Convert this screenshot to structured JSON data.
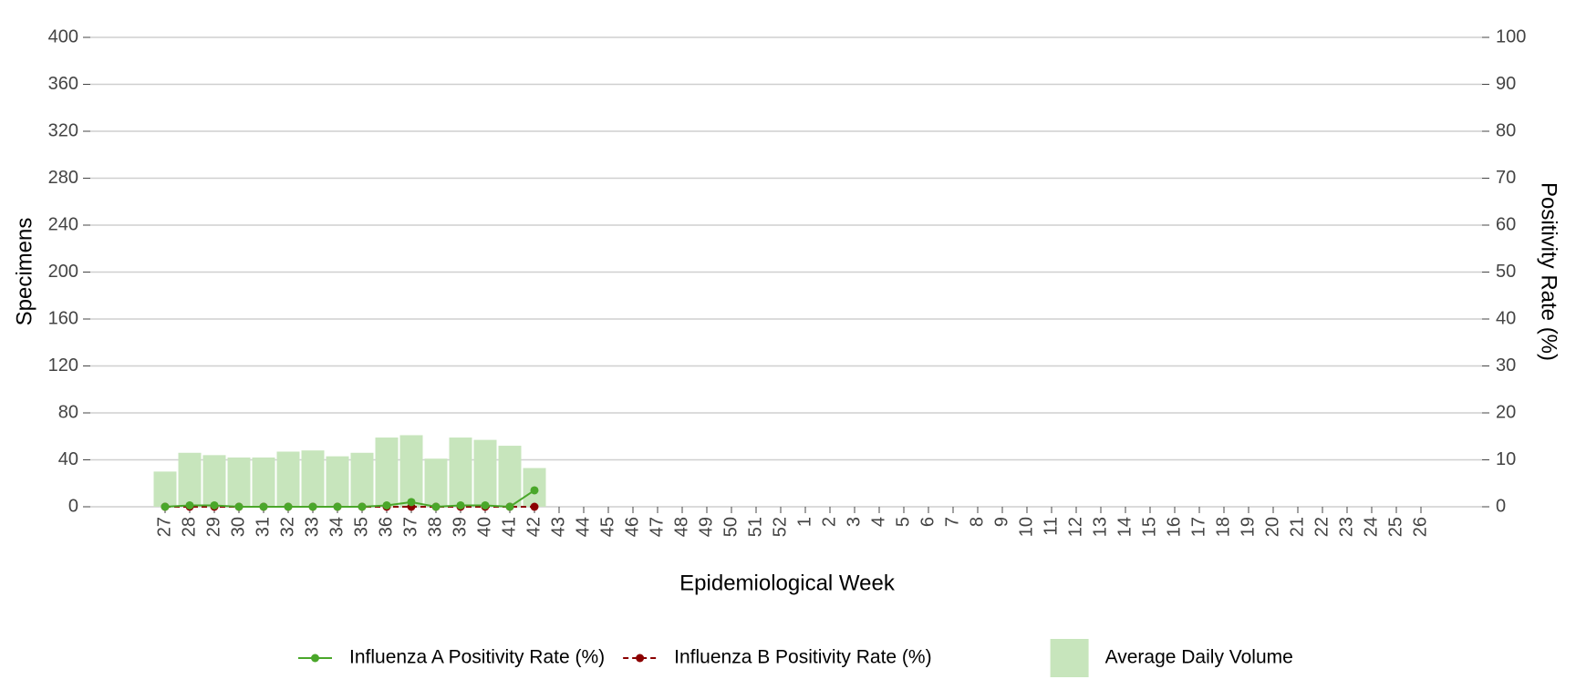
{
  "chart_data": {
    "type": "bar_line",
    "x_label": "Epidemiological Week",
    "y_label": "Specimens",
    "y2_label": "Positivity Rate (%)",
    "categories": [
      "27",
      "28",
      "29",
      "30",
      "31",
      "32",
      "33",
      "34",
      "35",
      "36",
      "37",
      "38",
      "39",
      "40",
      "41",
      "42",
      "43",
      "44",
      "45",
      "46",
      "47",
      "48",
      "49",
      "50",
      "51",
      "52",
      "1",
      "2",
      "3",
      "4",
      "5",
      "6",
      "7",
      "8",
      "9",
      "10",
      "11",
      "12",
      "13",
      "14",
      "15",
      "16",
      "17",
      "18",
      "19",
      "20",
      "21",
      "22",
      "23",
      "24",
      "25",
      "26"
    ],
    "series": [
      {
        "name": "Average Daily Volume",
        "type": "bar",
        "color": "#c7e5bc",
        "axis": "y",
        "values": [
          30,
          46,
          44,
          42,
          42,
          47,
          48,
          43,
          46,
          59,
          61,
          41,
          59,
          57,
          52,
          33,
          null,
          null,
          null,
          null,
          null,
          null,
          null,
          null,
          null,
          null,
          null,
          null,
          null,
          null,
          null,
          null,
          null,
          null,
          null,
          null,
          null,
          null,
          null,
          null,
          null,
          null,
          null,
          null,
          null,
          null,
          null,
          null,
          null,
          null,
          null,
          null
        ]
      },
      {
        "name": "Influenza A Positivity Rate (%)",
        "type": "line",
        "color": "#4aa72a",
        "axis": "y2",
        "dash": false,
        "values": [
          0,
          0.3,
          0.3,
          0,
          0,
          0,
          0,
          0,
          0,
          0.3,
          1,
          0,
          0.3,
          0.3,
          0,
          3.5,
          null,
          null,
          null,
          null,
          null,
          null,
          null,
          null,
          null,
          null,
          null,
          null,
          null,
          null,
          null,
          null,
          null,
          null,
          null,
          null,
          null,
          null,
          null,
          null,
          null,
          null,
          null,
          null,
          null,
          null,
          null,
          null,
          null,
          null,
          null,
          null
        ]
      },
      {
        "name": "Influenza B Positivity Rate (%)",
        "type": "line",
        "color": "#8b0000",
        "axis": "y2",
        "dash": true,
        "values": [
          0,
          0,
          0,
          0,
          0,
          0,
          0,
          0,
          0,
          0,
          0,
          0,
          0,
          0,
          0,
          0,
          null,
          null,
          null,
          null,
          null,
          null,
          null,
          null,
          null,
          null,
          null,
          null,
          null,
          null,
          null,
          null,
          null,
          null,
          null,
          null,
          null,
          null,
          null,
          null,
          null,
          null,
          null,
          null,
          null,
          null,
          null,
          null,
          null,
          null,
          null,
          null
        ]
      }
    ],
    "ylim": [
      0,
      400
    ],
    "yticks": [
      0,
      40,
      80,
      120,
      160,
      200,
      240,
      280,
      320,
      360,
      400
    ],
    "y2lim": [
      0,
      100
    ],
    "y2ticks": [
      0,
      10,
      20,
      30,
      40,
      50,
      60,
      70,
      80,
      90,
      100
    ],
    "grid": true,
    "legend": "bottom"
  }
}
